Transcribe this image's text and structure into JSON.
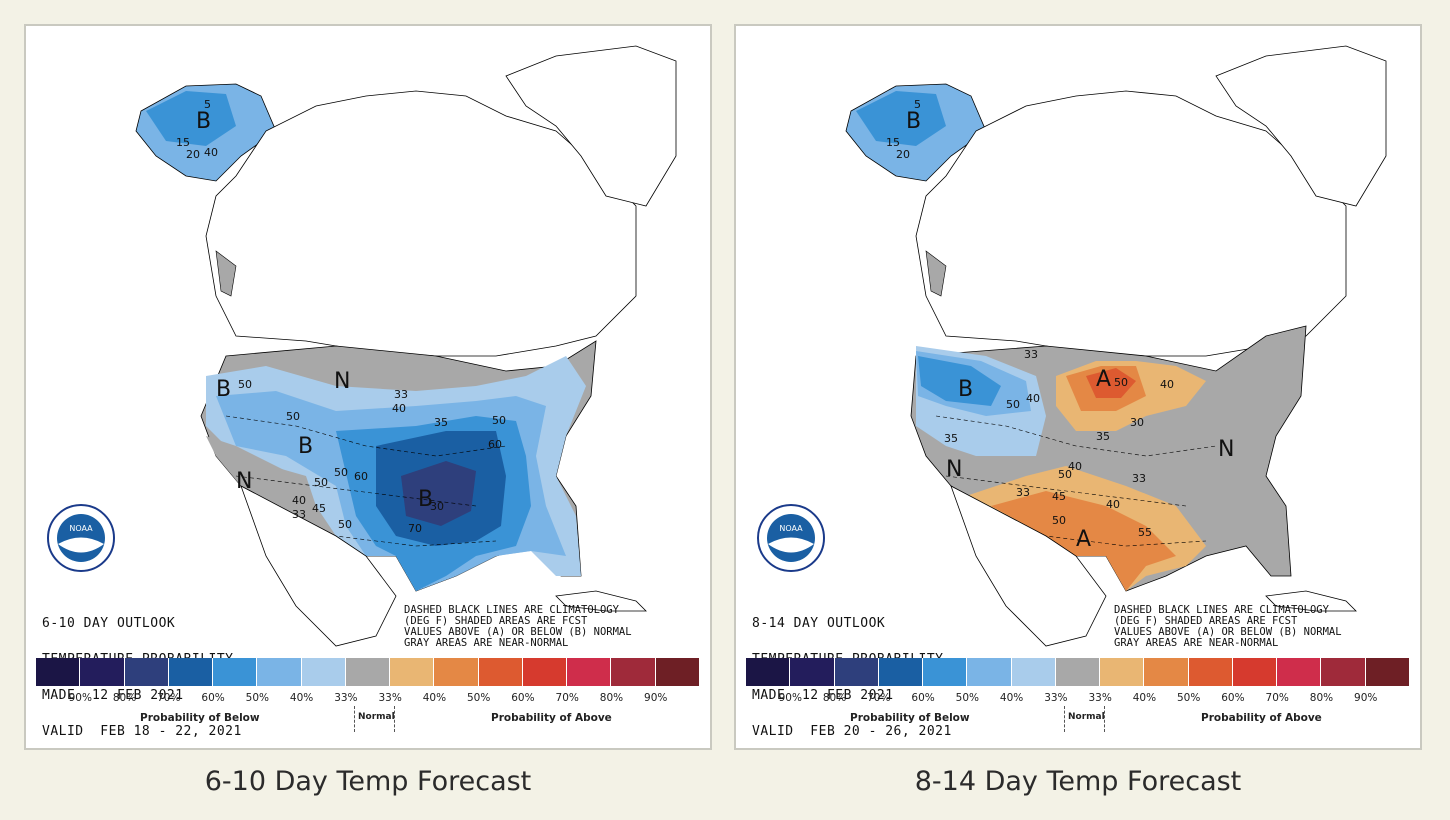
{
  "panels": [
    {
      "caption": "6-10 Day Temp Forecast",
      "logo_text": "NOAA",
      "logo_ring_text": "NATIONAL OCEANIC AND ATMOSPHERIC ADMINISTRATION · U.S. DEPARTMENT OF COMMERCE",
      "title_lines": [
        "6-10 DAY OUTLOOK",
        "TEMPERATURE PROBABILITY",
        "MADE  12 FEB 2021",
        "VALID  FEB 18 - 22, 2021"
      ],
      "legend_lines": [
        "DASHED BLACK LINES ARE CLIMATOLOGY",
        "(DEG F) SHADED AREAS ARE FCST",
        "VALUES ABOVE (A) OR BELOW (B) NORMAL",
        "GRAY AREAS ARE NEAR-NORMAL"
      ],
      "region_letters": [
        "B",
        "B",
        "B",
        "B",
        "N",
        "N"
      ],
      "contour_labels": [
        "5",
        "15",
        "20",
        "40",
        "50",
        "33",
        "40",
        "50",
        "60",
        "50",
        "50",
        "60",
        "70",
        "50",
        "40",
        "45",
        "33",
        "50",
        "30",
        "35"
      ]
    },
    {
      "caption": "8-14 Day Temp Forecast",
      "logo_text": "NOAA",
      "logo_ring_text": "NATIONAL OCEANIC AND ATMOSPHERIC ADMINISTRATION · U.S. DEPARTMENT OF COMMERCE",
      "title_lines": [
        "8-14 DAY OUTLOOK",
        "TEMPERATURE PROBABILITY",
        "MADE  12 FEB 2021",
        "VALID  FEB 20 - 26, 2021"
      ],
      "legend_lines": [
        "DASHED BLACK LINES ARE CLIMATOLOGY",
        "(DEG F) SHADED AREAS ARE FCST",
        "VALUES ABOVE (A) OR BELOW (B) NORMAL",
        "GRAY AREAS ARE NEAR-NORMAL"
      ],
      "region_letters": [
        "B",
        "B",
        "A",
        "A",
        "N",
        "N"
      ],
      "contour_labels": [
        "5",
        "15",
        "20",
        "50",
        "40",
        "33",
        "35",
        "50",
        "40",
        "30",
        "35",
        "33",
        "45",
        "50",
        "40",
        "55",
        "33",
        "40",
        "50"
      ]
    }
  ],
  "legend": {
    "colors": [
      "#1b1545",
      "#231d5c",
      "#2e3f7c",
      "#1a5fa3",
      "#3a93d6",
      "#7ab4e6",
      "#a9cceb",
      "#a8a8a8",
      "#e9b673",
      "#e48845",
      "#dd5a30",
      "#d63a2e",
      "#cf2d4b",
      "#9f2a3a",
      "#6e1f25"
    ],
    "ticks": [
      "90%",
      "80%",
      "70%",
      "60%",
      "50%",
      "40%",
      "33%",
      "33%",
      "40%",
      "50%",
      "60%",
      "70%",
      "80%",
      "90%"
    ],
    "below_label": "Probability of Below",
    "normal_label": "Normal",
    "above_label": "Probability of Above"
  }
}
